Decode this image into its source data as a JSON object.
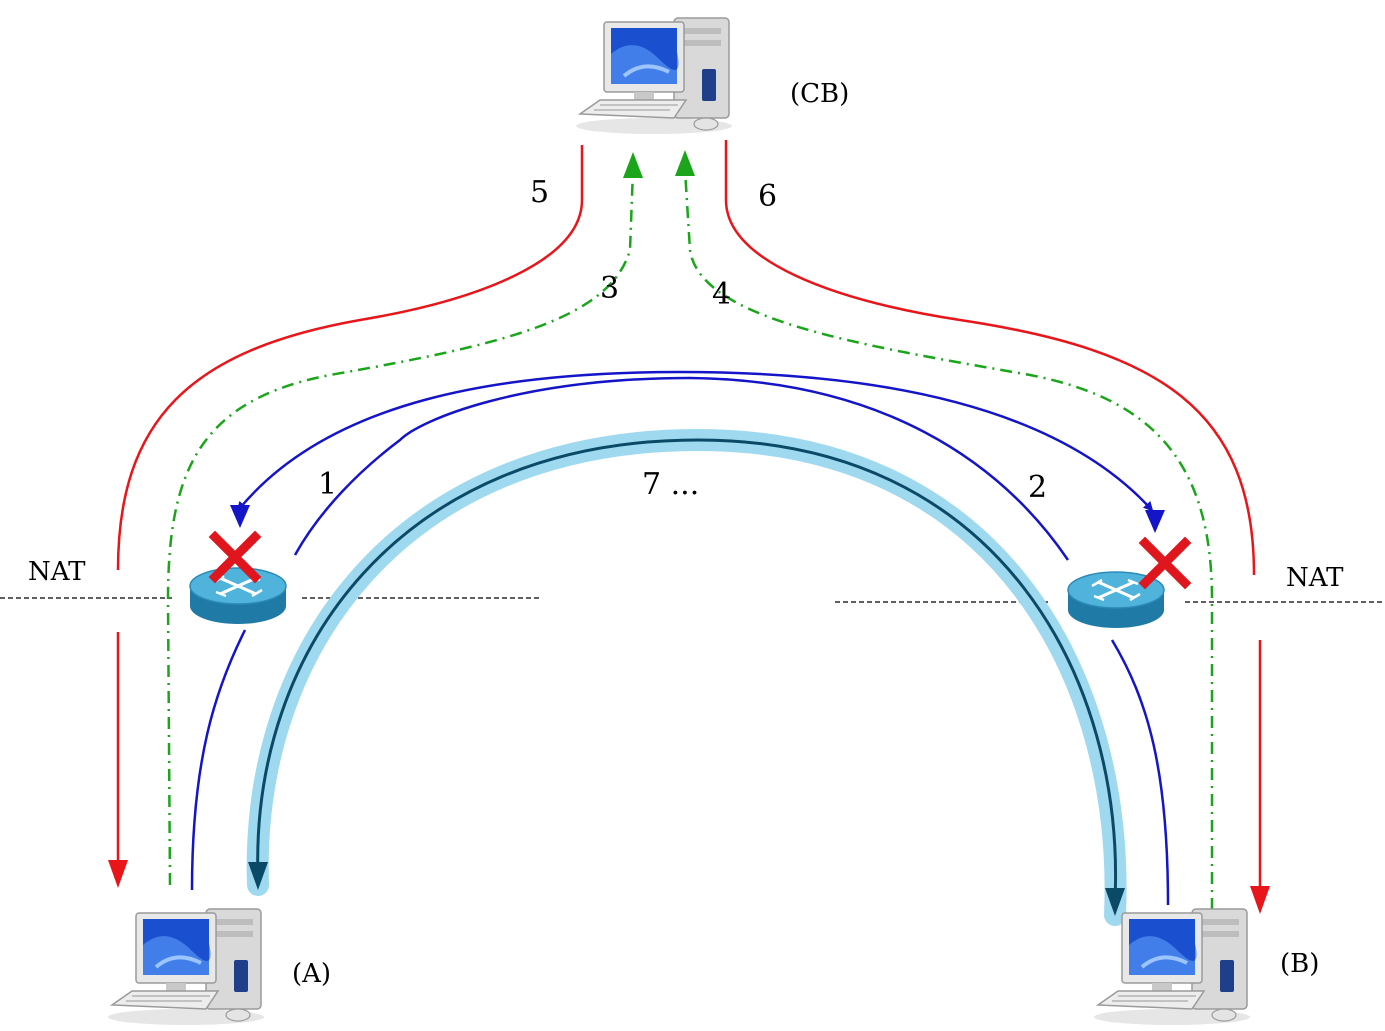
{
  "nodes": {
    "cb": "(CB)",
    "a": "(A)",
    "b": "(B)"
  },
  "nat_left": "NAT",
  "nat_right": "NAT",
  "steps": {
    "s1": "1",
    "s2": "2",
    "s3": "3",
    "s4": "4",
    "s5": "5",
    "s6": "6",
    "s7": "7 ..."
  },
  "colors": {
    "red": "#e8161a",
    "green": "#1aa51a",
    "blue": "#1414c8",
    "teal": "#0b4a66",
    "cyan_glow": "#9fd9ef",
    "router": "#3a9ec4",
    "block_x": "#e0161e"
  },
  "icons": [
    "computer-icon",
    "router-icon",
    "blocked-x-icon"
  ]
}
